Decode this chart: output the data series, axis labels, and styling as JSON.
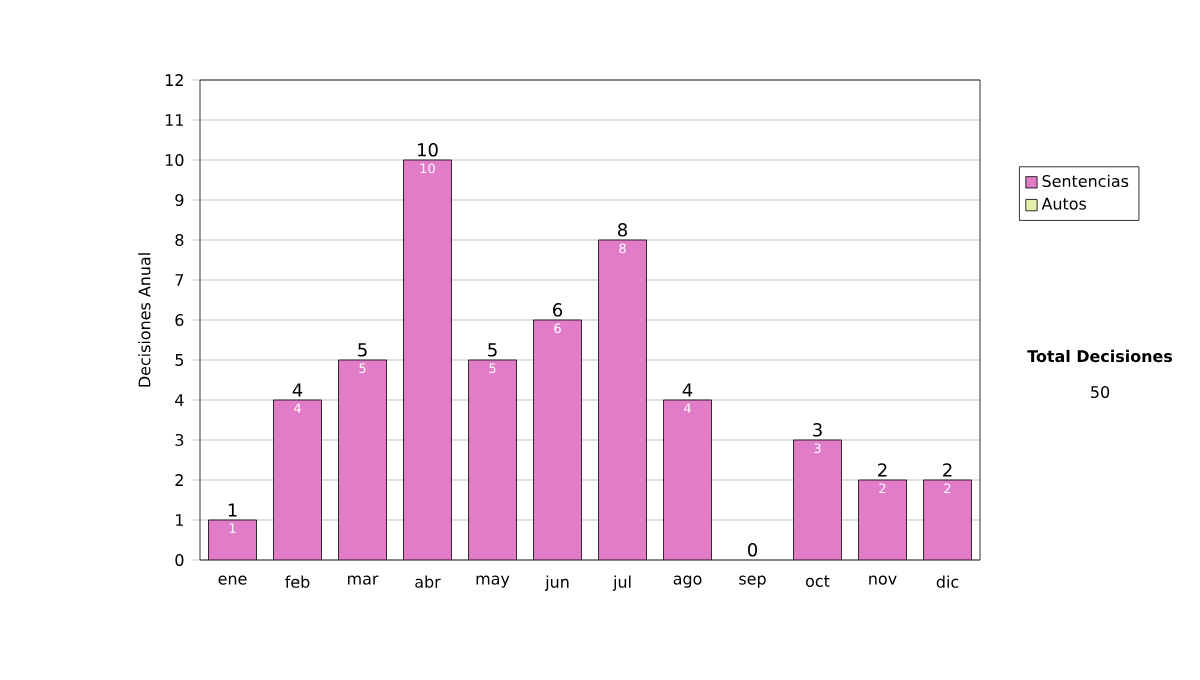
{
  "chart_data": {
    "type": "bar",
    "ylabel": "Decisiones Anual",
    "categories": [
      "ene",
      "feb",
      "mar",
      "abr",
      "may",
      "jun",
      "jul",
      "ago",
      "sep",
      "oct",
      "nov",
      "dic"
    ],
    "series": [
      {
        "name": "Sentencias",
        "color": "#e07cc8",
        "values": [
          1,
          4,
          5,
          10,
          5,
          6,
          8,
          4,
          0,
          3,
          2,
          2
        ],
        "value_labels": [
          "1",
          "4",
          "5",
          "10",
          "5",
          "6",
          "8",
          "4",
          null,
          "3",
          "2",
          "2"
        ]
      },
      {
        "name": "Autos",
        "color": "#e6f0a8",
        "values": [
          null,
          null,
          null,
          null,
          null,
          null,
          null,
          null,
          null,
          null,
          null,
          null
        ]
      }
    ],
    "stacked": true,
    "totals": [
      "1",
      "4",
      "5",
      "10",
      "5",
      "6",
      "8",
      "4",
      "0",
      "3",
      "2",
      "2"
    ],
    "ylim": [
      0,
      12
    ],
    "yticks": [
      0,
      1,
      2,
      3,
      4,
      5,
      6,
      7,
      8,
      9,
      10,
      11,
      12
    ],
    "grid": "y",
    "legend": "right",
    "annotations": [
      "Total Decisiones",
      "50"
    ]
  }
}
